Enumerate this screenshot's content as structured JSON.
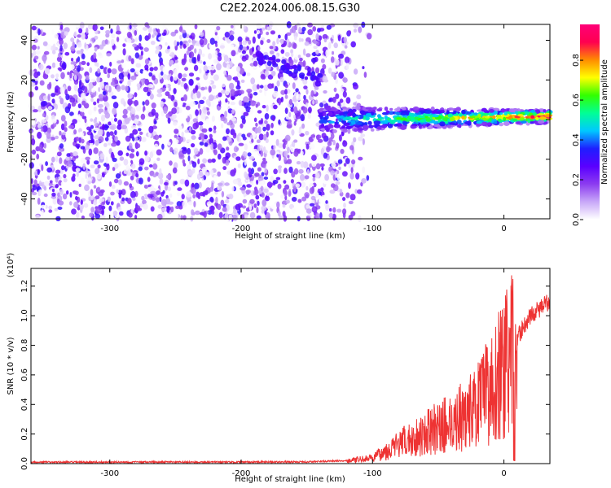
{
  "figure": {
    "title": "C2E2.2024.006.08.15.G30"
  },
  "chart_data": [
    {
      "type": "heatmap",
      "xlabel": "Height of straight line (km)",
      "ylabel": "Frequency (Hz)",
      "xlim": [
        -360,
        35
      ],
      "ylim": [
        -50,
        48
      ],
      "xticks": [
        -300,
        -200,
        -100,
        0
      ],
      "xtick_labels": [
        "-300",
        "-200",
        "-100",
        "0"
      ],
      "yticks": [
        -40,
        -20,
        0,
        20,
        40
      ],
      "ytick_labels": [
        "-40",
        "-20",
        "0",
        "20",
        "40"
      ],
      "colorbar": {
        "label": "Normalized spectral amplitude",
        "range": [
          0,
          0.98
        ],
        "ticks": [
          0.0,
          0.2,
          0.4,
          0.6,
          0.8
        ],
        "tick_labels": [
          "0.0",
          "0.2",
          "0.4",
          "0.6",
          "0.8"
        ],
        "colormap": [
          "#ffffff",
          "#c8a8f8",
          "#8c3cf0",
          "#5a00ff",
          "#1e1eff",
          "#00c8ff",
          "#00ff96",
          "#32ff00",
          "#ffff00",
          "#ff8c00",
          "#ff0050",
          "#ff0078"
        ]
      },
      "features": {
        "diffuse_scatter_range_km": [
          -360,
          -100
        ],
        "diagonal_streak": {
          "x": [
            -190,
            -140
          ],
          "y": [
            32,
            20
          ]
        },
        "signal_band": {
          "x": [
            -140,
            35
          ],
          "y_center": [
            0,
            1.5
          ],
          "half_width": [
            4,
            2
          ]
        },
        "empty_region_x_km": [
          -120,
          35
        ]
      },
      "grid": false
    },
    {
      "type": "line",
      "xlabel": "Height of straight line (km)",
      "ylabel": "SNR (10 * v/v)",
      "y_scale_note": "(x10⁴)",
      "xlim": [
        -360,
        35
      ],
      "ylim": [
        0,
        1.32
      ],
      "xticks": [
        -300,
        -200,
        -100,
        0
      ],
      "xtick_labels": [
        "-300",
        "-200",
        "-100",
        "0"
      ],
      "yticks": [
        0.0,
        0.2,
        0.4,
        0.6,
        0.8,
        1.0,
        1.2
      ],
      "ytick_labels": [
        "0.0",
        "0.2",
        "0.4",
        "0.6",
        "0.8",
        "1.0",
        "1.2"
      ],
      "series": [
        {
          "color": "#ee3333",
          "x": [
            -360,
            -300,
            -200,
            -150,
            -120,
            -100,
            -90,
            -80,
            -70,
            -60,
            -50,
            -40,
            -30,
            -20,
            -10,
            0,
            10,
            20,
            35
          ],
          "y": [
            0.01,
            0.01,
            0.01,
            0.012,
            0.02,
            0.04,
            0.09,
            0.14,
            0.18,
            0.22,
            0.26,
            0.3,
            0.35,
            0.42,
            0.55,
            0.7,
            0.85,
            1.0,
            1.1
          ]
        }
      ],
      "grid": false
    }
  ]
}
